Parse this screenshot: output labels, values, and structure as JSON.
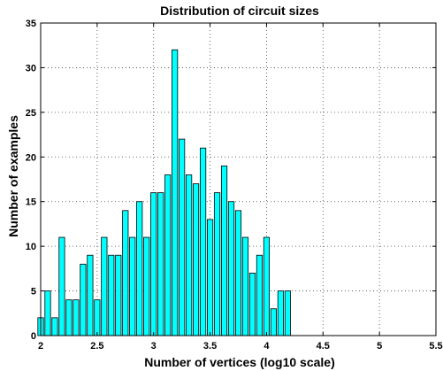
{
  "chart_data": {
    "type": "bar",
    "title": "Distribution of circuit sizes",
    "xlabel": "Number of vertices (log10 scale)",
    "ylabel": "Number of examples",
    "xlim": [
      2,
      5.5
    ],
    "ylim": [
      0,
      35
    ],
    "xticks": [
      2,
      2.5,
      3,
      3.5,
      4,
      4.5,
      5,
      5.5
    ],
    "xtick_labels": [
      "2",
      "2.5",
      "3",
      "3.5",
      "4",
      "4.5",
      "5",
      "5.5"
    ],
    "yticks": [
      0,
      5,
      10,
      15,
      20,
      25,
      30,
      35
    ],
    "ytick_labels": [
      "0",
      "5",
      "10",
      "15",
      "20",
      "25",
      "30",
      "35"
    ],
    "grid": true,
    "bar_color": "#00ffff",
    "bin_width": 0.0625,
    "x": [
      2.0,
      2.0625,
      2.125,
      2.1875,
      2.25,
      2.3125,
      2.375,
      2.4375,
      2.5,
      2.5625,
      2.625,
      2.6875,
      2.75,
      2.8125,
      2.875,
      2.9375,
      3.0,
      3.0625,
      3.125,
      3.1875,
      3.25,
      3.3125,
      3.375,
      3.4375,
      3.5,
      3.5625,
      3.625,
      3.6875,
      3.75,
      3.8125,
      3.875,
      3.9375,
      4.0,
      4.0625,
      4.125,
      4.1875,
      4.25,
      4.3125,
      4.375,
      4.4375,
      4.5,
      4.5625,
      4.625,
      4.6875,
      4.75,
      4.8125,
      4.875,
      4.9375,
      5.0,
      5.0625,
      5.125
    ],
    "values": [
      2,
      5,
      2,
      11,
      4,
      4,
      8,
      9,
      4,
      11,
      9,
      9,
      14,
      11,
      15,
      11,
      16,
      16,
      18,
      32,
      22,
      18,
      17,
      21,
      13,
      16,
      19,
      15,
      14,
      11,
      7,
      9,
      11,
      3,
      5,
      5,
      0,
      0,
      0,
      0,
      0,
      0,
      0,
      0,
      0,
      0,
      0,
      0,
      0,
      0,
      0
    ]
  }
}
